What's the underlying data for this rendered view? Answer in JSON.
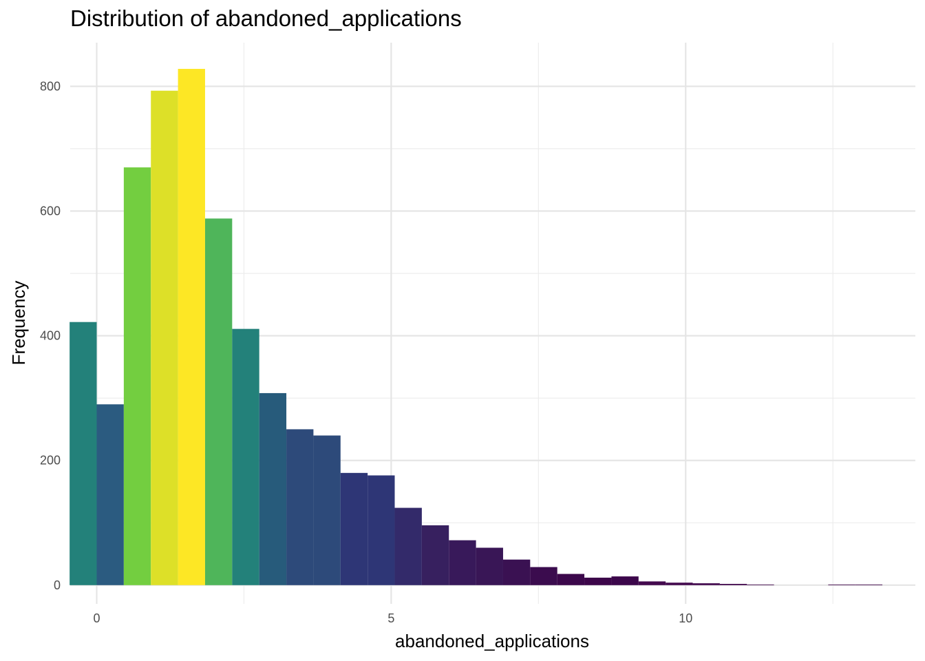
{
  "chart_data": {
    "type": "bar",
    "title": "Distribution of abandoned_applications",
    "xlabel": "abandoned_applications",
    "ylabel": "Frequency",
    "xlim": [
      -0.45,
      13.9
    ],
    "ylim": [
      -30,
      870
    ],
    "x_ticks": [
      0,
      5,
      10
    ],
    "x_tick_labels": [
      "0",
      "5",
      "10"
    ],
    "y_ticks": [
      0,
      200,
      400,
      600,
      800
    ],
    "y_tick_labels": [
      "0",
      "200",
      "400",
      "600",
      "800"
    ],
    "grid": true,
    "legend": "none",
    "bin_width": 0.46,
    "bins": [
      {
        "x": -0.23,
        "value": 422,
        "color": "#23817a"
      },
      {
        "x": 0.23,
        "value": 290,
        "color": "#2b5b80"
      },
      {
        "x": 0.69,
        "value": 670,
        "color": "#73ce40"
      },
      {
        "x": 1.15,
        "value": 793,
        "color": "#dde028"
      },
      {
        "x": 1.61,
        "value": 828,
        "color": "#fde725"
      },
      {
        "x": 2.07,
        "value": 588,
        "color": "#4fb55a"
      },
      {
        "x": 2.53,
        "value": 411,
        "color": "#23817a"
      },
      {
        "x": 2.99,
        "value": 308,
        "color": "#275b7b"
      },
      {
        "x": 3.45,
        "value": 250,
        "color": "#2d4a7a"
      },
      {
        "x": 3.91,
        "value": 240,
        "color": "#2d4a7a"
      },
      {
        "x": 4.37,
        "value": 180,
        "color": "#2e3676"
      },
      {
        "x": 4.83,
        "value": 176,
        "color": "#2e3676"
      },
      {
        "x": 5.29,
        "value": 124,
        "color": "#332a6a"
      },
      {
        "x": 5.75,
        "value": 96,
        "color": "#37205f"
      },
      {
        "x": 6.21,
        "value": 72,
        "color": "#38195a"
      },
      {
        "x": 6.67,
        "value": 60,
        "color": "#391656"
      },
      {
        "x": 7.13,
        "value": 41,
        "color": "#3a1152"
      },
      {
        "x": 7.59,
        "value": 29,
        "color": "#3b0c4e"
      },
      {
        "x": 8.05,
        "value": 18,
        "color": "#3c084b"
      },
      {
        "x": 8.51,
        "value": 12,
        "color": "#3d064a"
      },
      {
        "x": 8.97,
        "value": 14,
        "color": "#3c074b"
      },
      {
        "x": 9.43,
        "value": 6,
        "color": "#430a4e"
      },
      {
        "x": 9.89,
        "value": 4,
        "color": "#430a4e"
      },
      {
        "x": 10.35,
        "value": 3,
        "color": "#430a4e"
      },
      {
        "x": 10.81,
        "value": 2,
        "color": "#430a4e"
      },
      {
        "x": 11.27,
        "value": 1,
        "color": "#430a4e"
      },
      {
        "x": 11.73,
        "value": 0,
        "color": "#430a4e"
      },
      {
        "x": 12.19,
        "value": 0,
        "color": "#430a4e"
      },
      {
        "x": 12.65,
        "value": 1,
        "color": "#430a4e"
      },
      {
        "x": 13.11,
        "value": 1,
        "color": "#430a4e"
      }
    ]
  }
}
